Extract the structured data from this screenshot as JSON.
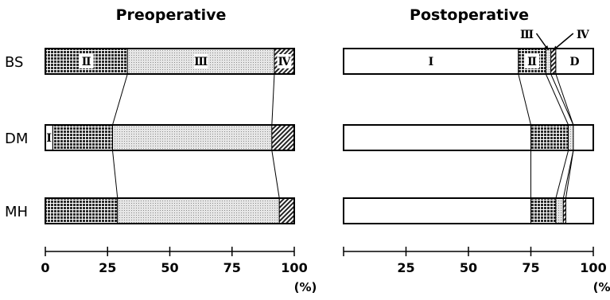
{
  "chart_data": [
    {
      "type": "bar",
      "subtype": "stacked-100-horizontal",
      "title": "Preoperative",
      "categories": [
        "BS",
        "DM",
        "MH"
      ],
      "segment_classes": [
        "I",
        "II",
        "III",
        "IV",
        "D"
      ],
      "series": [
        {
          "name": "I",
          "values": [
            0,
            3,
            0
          ]
        },
        {
          "name": "II",
          "values": [
            33,
            24,
            29
          ]
        },
        {
          "name": "III",
          "values": [
            59,
            64,
            65
          ]
        },
        {
          "name": "IV",
          "values": [
            8,
            9,
            6
          ]
        },
        {
          "name": "D",
          "values": [
            0,
            0,
            0
          ]
        }
      ],
      "segment_labels": [
        {
          "category": "BS",
          "segment": "II",
          "text": "Ⅱ"
        },
        {
          "category": "BS",
          "segment": "III",
          "text": "Ⅲ"
        },
        {
          "category": "BS",
          "segment": "IV",
          "text": "Ⅳ"
        },
        {
          "category": "DM",
          "segment": "I",
          "text": "Ⅰ"
        }
      ],
      "xlim": [
        0,
        100
      ],
      "xticks": [
        0,
        25,
        50,
        75,
        100
      ],
      "xtick_labels": [
        "0",
        "25",
        "50",
        "75",
        "100"
      ],
      "unit_label": "(%)",
      "grid": false,
      "legend": "none"
    },
    {
      "type": "bar",
      "subtype": "stacked-100-horizontal",
      "title": "Postoperative",
      "categories": [
        "BS",
        "DM",
        "MH"
      ],
      "segment_classes": [
        "I",
        "II",
        "III",
        "IV",
        "D"
      ],
      "series": [
        {
          "name": "I",
          "values": [
            70,
            75,
            75
          ]
        },
        {
          "name": "II",
          "values": [
            11,
            15,
            10
          ]
        },
        {
          "name": "III",
          "values": [
            2,
            2,
            3
          ]
        },
        {
          "name": "IV",
          "values": [
            2,
            0,
            1
          ]
        },
        {
          "name": "D",
          "values": [
            15,
            8,
            11
          ]
        }
      ],
      "segment_labels": [
        {
          "category": "BS",
          "segment": "I",
          "text": "I"
        },
        {
          "category": "BS",
          "segment": "II",
          "text": "Ⅱ"
        },
        {
          "category": "BS",
          "segment": "D",
          "text": "D"
        }
      ],
      "callouts": [
        {
          "segment": "III",
          "text": "Ⅲ"
        },
        {
          "segment": "IV",
          "text": "Ⅳ"
        }
      ],
      "xlim": [
        0,
        100
      ],
      "xticks": [
        0,
        25,
        50,
        75,
        100
      ],
      "xtick_labels": [
        "",
        "25",
        "50",
        "75",
        "100"
      ],
      "unit_label": "(%)",
      "grid": false,
      "legend": "none"
    }
  ]
}
